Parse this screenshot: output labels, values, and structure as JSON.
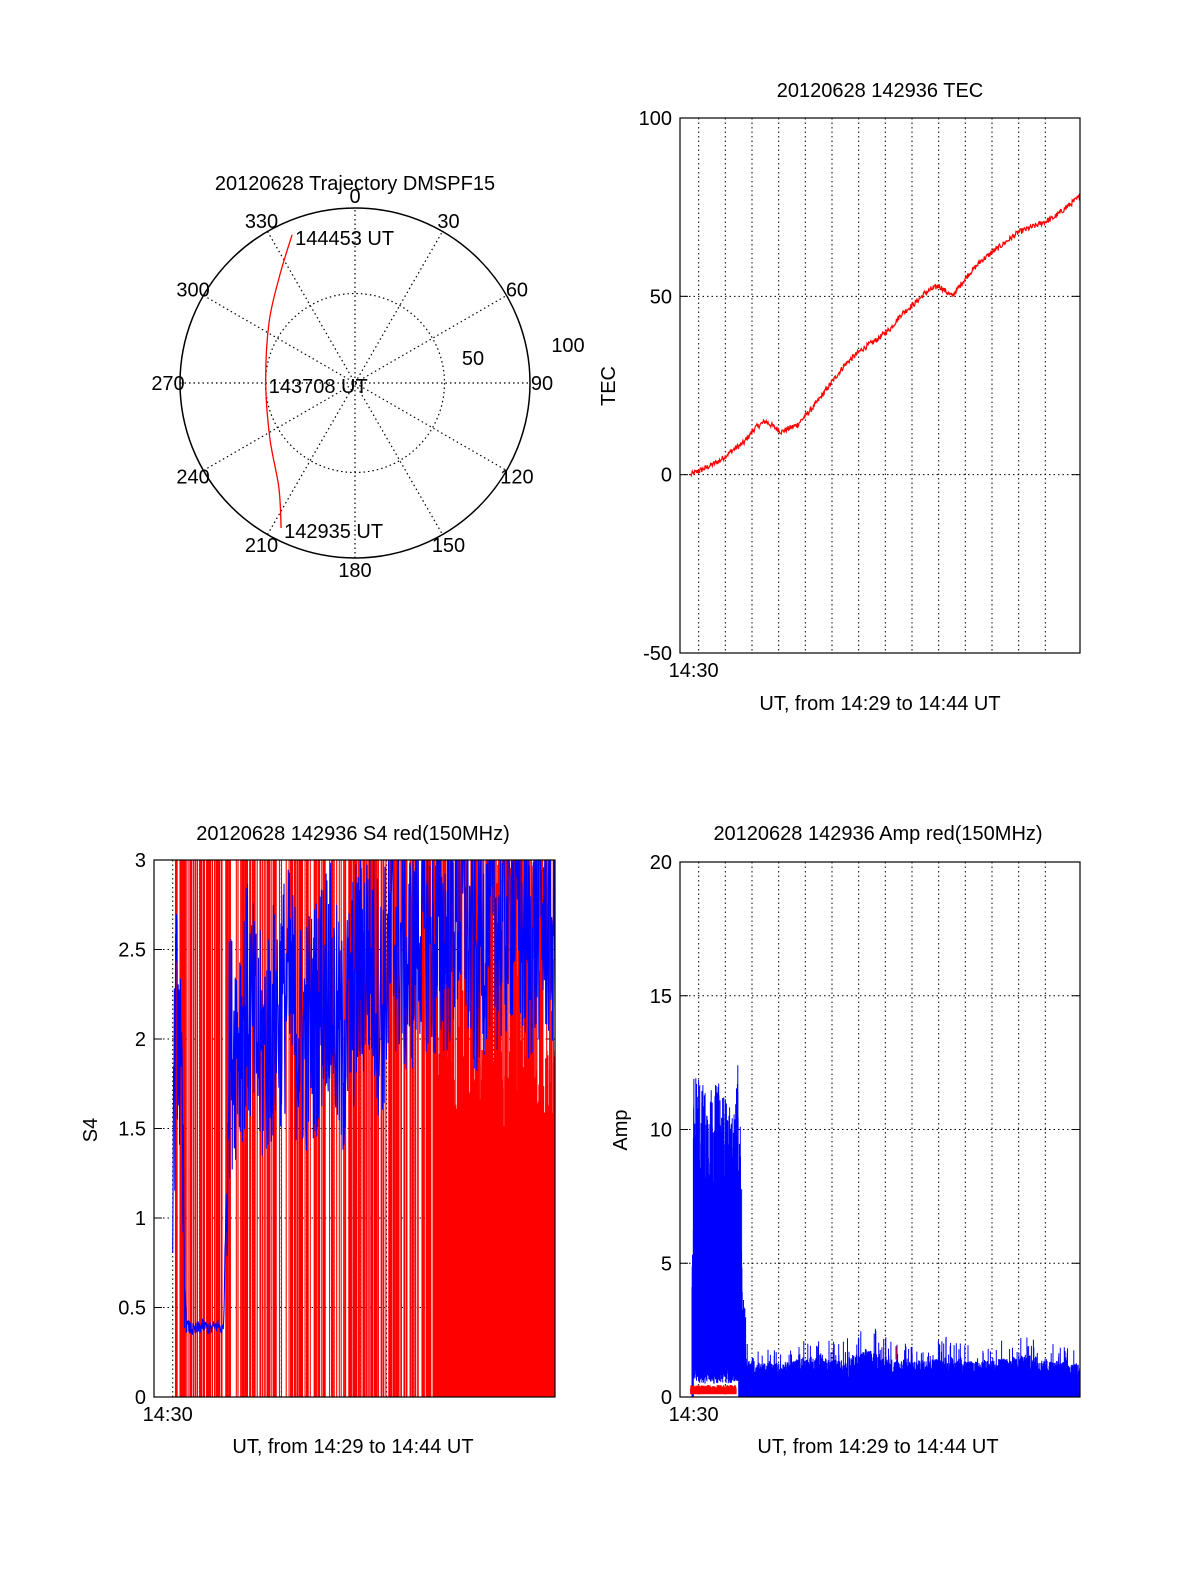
{
  "chart_data": [
    {
      "type": "polar",
      "title": "20120628 Trajectory DMSPF15",
      "angle_labels": [
        "0",
        "30",
        "60",
        "90",
        "120",
        "150",
        "180",
        "210",
        "240",
        "270",
        "300",
        "330"
      ],
      "radial_labels": [
        "50",
        "100"
      ],
      "rlim": [
        0,
        100
      ],
      "grid": true,
      "series": [
        {
          "color": "#ff0000",
          "points": [
            {
              "angle": 337,
              "r": 92
            },
            {
              "angle": 325,
              "r": 75
            },
            {
              "angle": 305,
              "r": 60
            },
            {
              "angle": 270,
              "r": 51
            },
            {
              "angle": 237,
              "r": 58
            },
            {
              "angle": 216,
              "r": 74
            },
            {
              "angle": 207,
              "r": 93
            }
          ]
        }
      ],
      "annotations": [
        {
          "text": "144453 UT",
          "angle": 337,
          "r": 92
        },
        {
          "text": "143708 UT",
          "angle": 270,
          "r": 51
        },
        {
          "text": "142935 UT",
          "angle": 207,
          "r": 93
        }
      ]
    },
    {
      "type": "line",
      "title": "20120628 142936 TEC",
      "xlabel": "UT, from 14:29 to 14:44 UT",
      "ylabel": "TEC",
      "xticklabels": [
        "14:30"
      ],
      "xlim": [
        0,
        15
      ],
      "ylim": [
        -50,
        100
      ],
      "yticks": [
        -50,
        0,
        50,
        100
      ],
      "grid": true,
      "series": [
        {
          "color": "#ff0000",
          "x": [
            0.4,
            1.0,
            1.5,
            2.0,
            2.4,
            2.8,
            3.2,
            3.8,
            4.4,
            5.0,
            5.6,
            6.2,
            6.8,
            7.4,
            7.9,
            8.3,
            8.8,
            9.2,
            9.7,
            10.2,
            10.8,
            11.3,
            12.0,
            12.7,
            13.4,
            14.0,
            15.0
          ],
          "y": [
            0,
            2,
            4,
            7,
            9,
            13,
            15,
            12,
            14,
            19,
            25,
            31,
            35,
            38,
            41,
            45,
            48,
            51,
            53,
            50,
            56,
            60,
            64,
            68,
            70,
            72,
            78
          ]
        }
      ]
    },
    {
      "type": "line",
      "title": "20120628 142936 S4 red(150MHz)",
      "xlabel": "UT, from 14:29 to 14:44 UT",
      "ylabel": "S4",
      "xticklabels": [
        "14:30"
      ],
      "xlim": [
        0,
        15
      ],
      "ylim": [
        0,
        3
      ],
      "yticks": [
        0,
        0.5,
        1,
        1.5,
        2,
        2.5,
        3
      ],
      "grid": true,
      "series": [
        {
          "color": "#0000ff",
          "x": [
            0.7,
            0.9,
            1.0,
            1.2,
            1.5,
            1.8,
            2.1,
            2.4,
            2.6,
            2.8,
            3.0,
            3.5,
            4.0,
            4.5,
            5.0,
            5.5,
            6.0,
            6.5,
            7.0,
            7.5,
            8.0,
            8.5,
            9.0,
            9.5,
            10.0,
            10.5,
            11.0,
            11.5,
            12.0,
            12.5,
            13.0,
            13.5,
            14.0,
            14.5,
            15.0
          ],
          "y": [
            1.5,
            2.3,
            1.6,
            0.4,
            0.37,
            0.4,
            0.38,
            0.4,
            0.37,
            1.9,
            2.0,
            2.2,
            1.9,
            2.1,
            2.3,
            2.0,
            2.1,
            2.4,
            1.9,
            2.3,
            2.5,
            2.2,
            2.6,
            2.4,
            2.7,
            2.5,
            2.6,
            2.8,
            2.4,
            2.7,
            2.6,
            2.8,
            2.5,
            2.7,
            2.6
          ]
        },
        {
          "color": "#ff0000",
          "x": [
            0.8,
            15.0
          ],
          "y": [
            0,
            3
          ],
          "note": "dense vertical spikes spanning the full range"
        }
      ]
    },
    {
      "type": "line",
      "title": "20120628 142936 Amp red(150MHz)",
      "xlabel": "UT, from 14:29 to 14:44 UT",
      "ylabel": "Amp",
      "xticklabels": [
        "14:30"
      ],
      "xlim": [
        0,
        15
      ],
      "ylim": [
        0,
        20
      ],
      "yticks": [
        0,
        5,
        10,
        15,
        20
      ],
      "grid": true,
      "series": [
        {
          "color": "#0000ff",
          "x": [
            0.0,
            0.4,
            0.5,
            1.0,
            1.5,
            2.0,
            2.2,
            2.5,
            3.0,
            4.0,
            5.0,
            6.0,
            7.0,
            8.0,
            9.0,
            10.0,
            11.0,
            12.0,
            13.0,
            14.0,
            15.0
          ],
          "y_low": [
            0,
            0,
            0.5,
            0.5,
            0.5,
            0.5,
            0.5,
            0,
            0,
            0,
            0,
            0,
            0,
            0,
            0,
            0,
            0,
            0,
            0,
            0,
            0
          ],
          "y_high": [
            0,
            2.8,
            12.5,
            11.5,
            11.8,
            10.5,
            12.8,
            2.2,
            1.8,
            1.9,
            2.3,
            2.0,
            2.8,
            2.1,
            2.0,
            2.3,
            1.9,
            2.1,
            2.4,
            2.0,
            1.7
          ]
        },
        {
          "color": "#ff0000",
          "x": [
            0.4,
            2.1
          ],
          "y": [
            0.3,
            0.3
          ]
        }
      ]
    }
  ]
}
